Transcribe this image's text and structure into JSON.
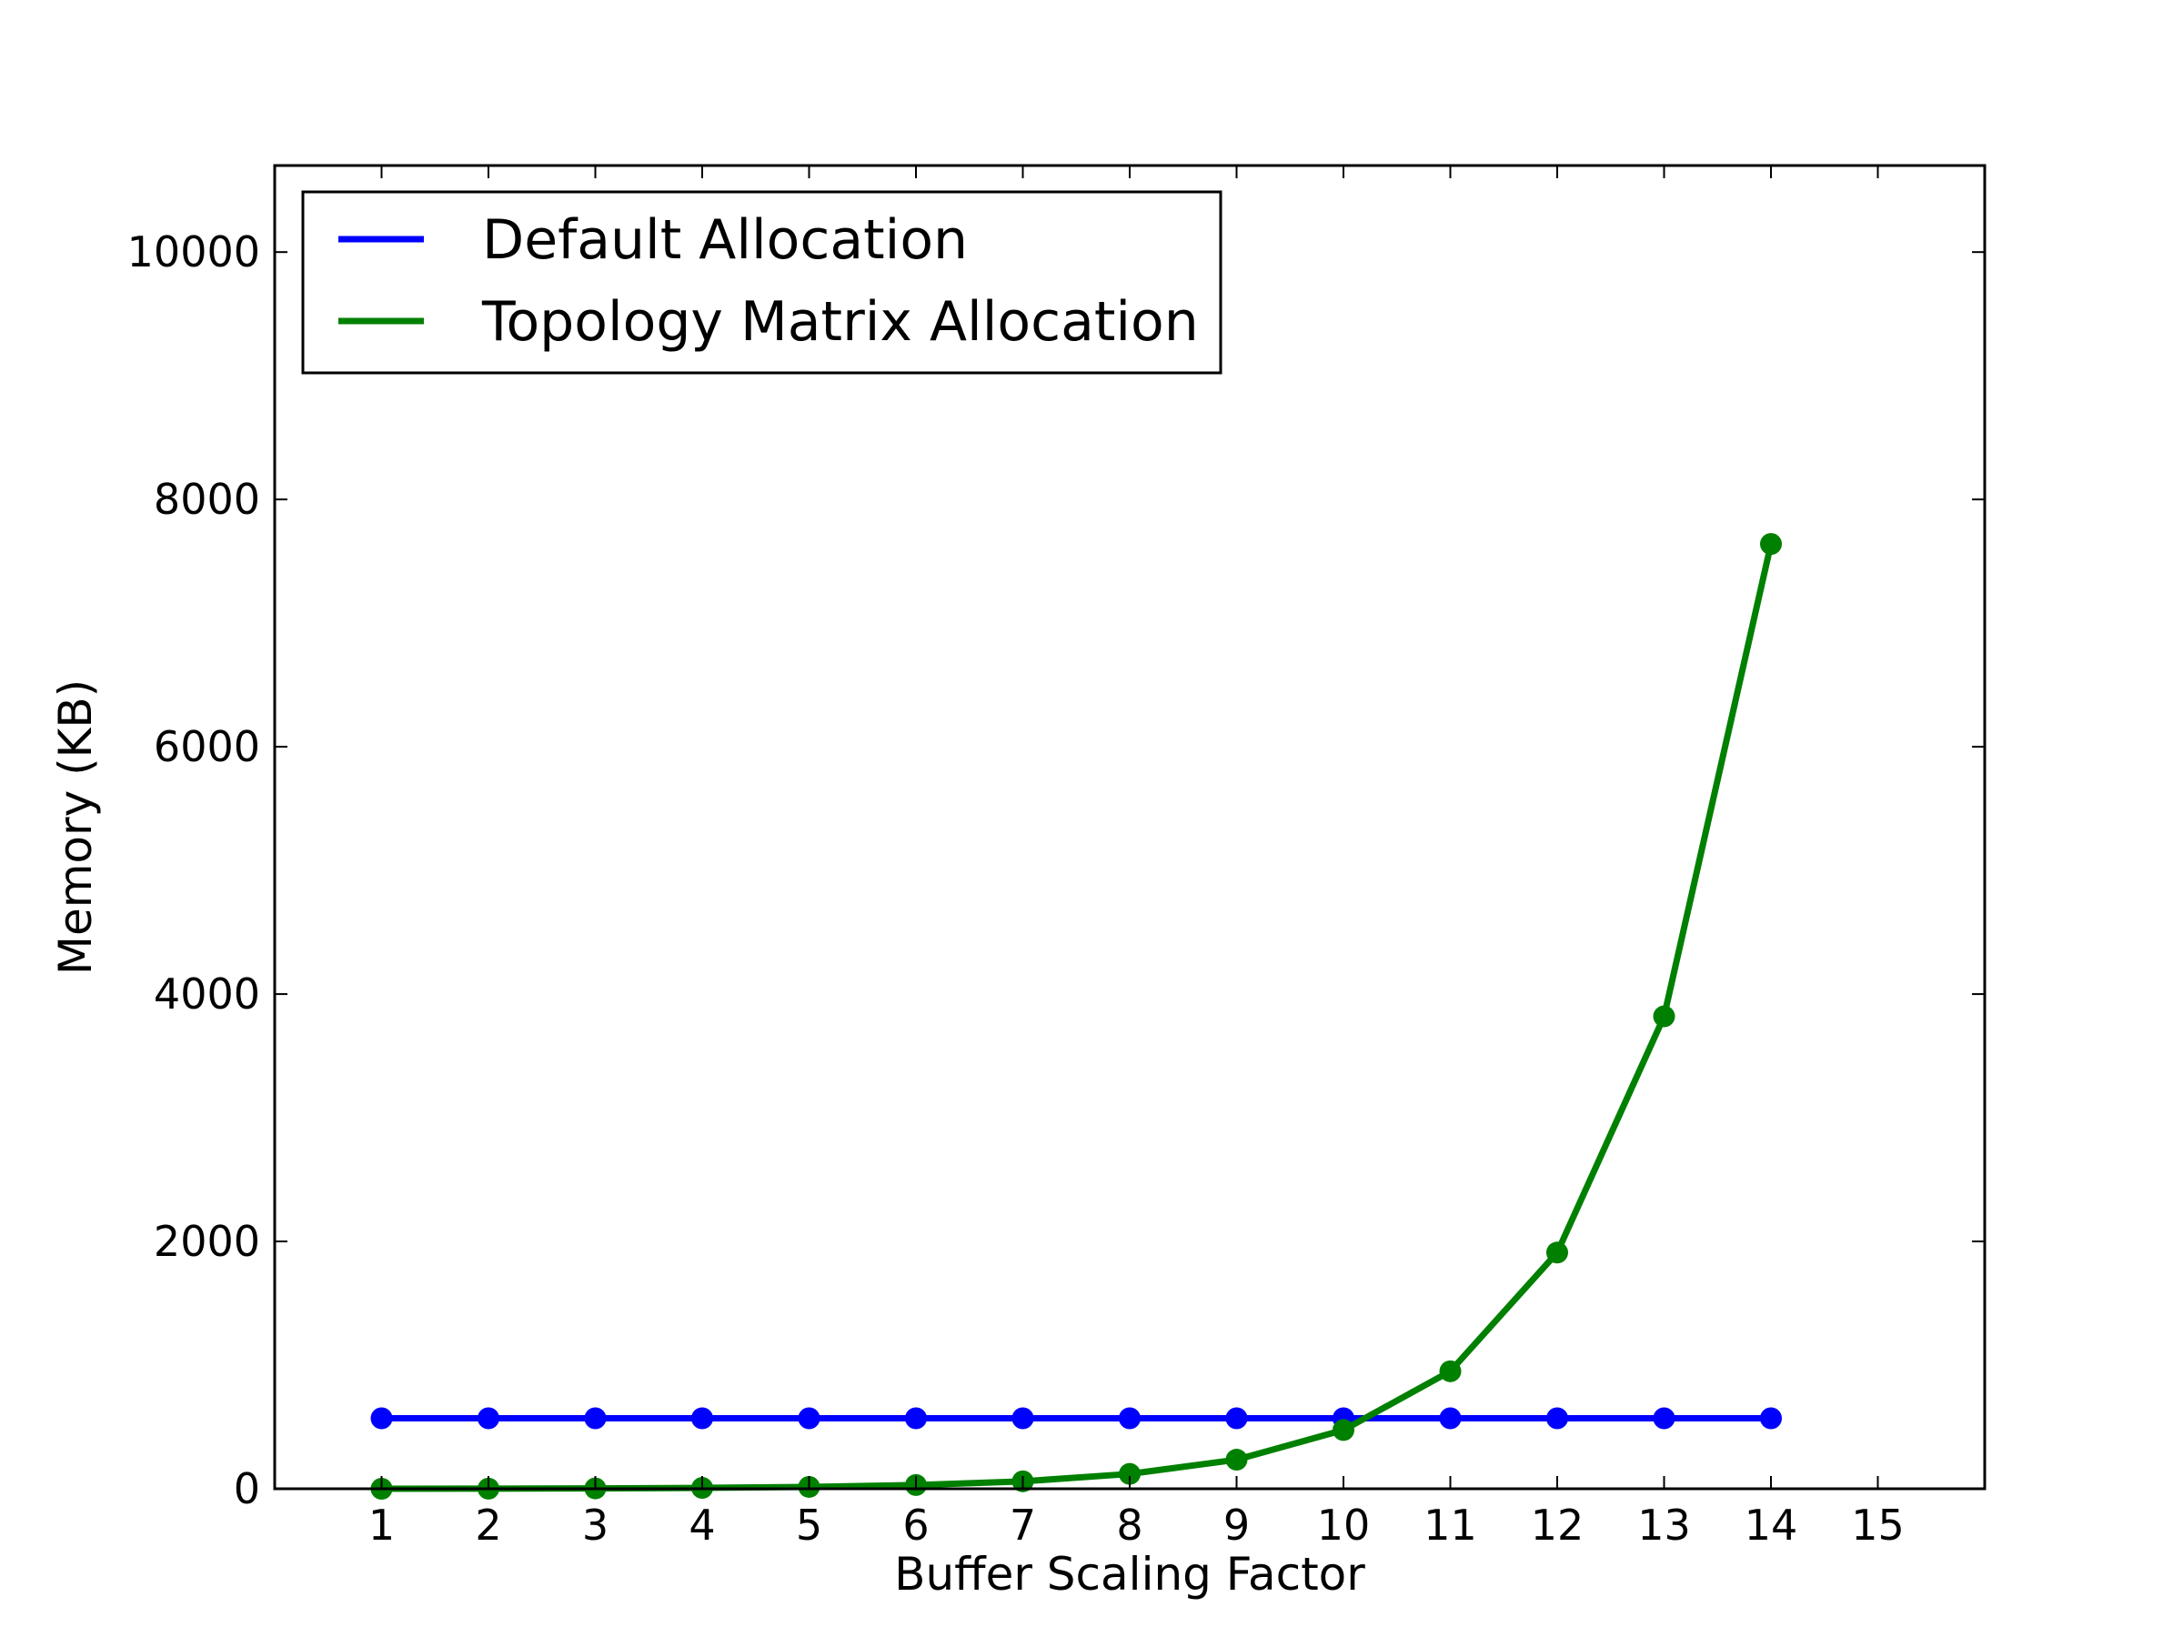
{
  "chart_data": {
    "type": "line",
    "xlabel": "Buffer Scaling Factor",
    "ylabel": "Memory (KB)",
    "xlim": [
      0,
      16
    ],
    "ylim": [
      0,
      10700
    ],
    "xticks": [
      1,
      2,
      3,
      4,
      5,
      6,
      7,
      8,
      9,
      10,
      11,
      12,
      13,
      14,
      15
    ],
    "yticks": [
      0,
      2000,
      4000,
      6000,
      8000,
      10000
    ],
    "grid": false,
    "legend_position": "top-left",
    "x": [
      1,
      2,
      3,
      4,
      5,
      6,
      7,
      8,
      9,
      10,
      11,
      12,
      13,
      14
    ],
    "series": [
      {
        "name": "Default Allocation",
        "color": "#0000ff",
        "values": [
          570,
          570,
          570,
          570,
          570,
          570,
          570,
          570,
          570,
          570,
          570,
          570,
          570,
          570
        ]
      },
      {
        "name": "Topology Matrix Allocation",
        "color": "#008000",
        "values": [
          0,
          1,
          3,
          7,
          15,
          30,
          60,
          120,
          235,
          475,
          950,
          1910,
          3820,
          7640
        ]
      }
    ]
  }
}
